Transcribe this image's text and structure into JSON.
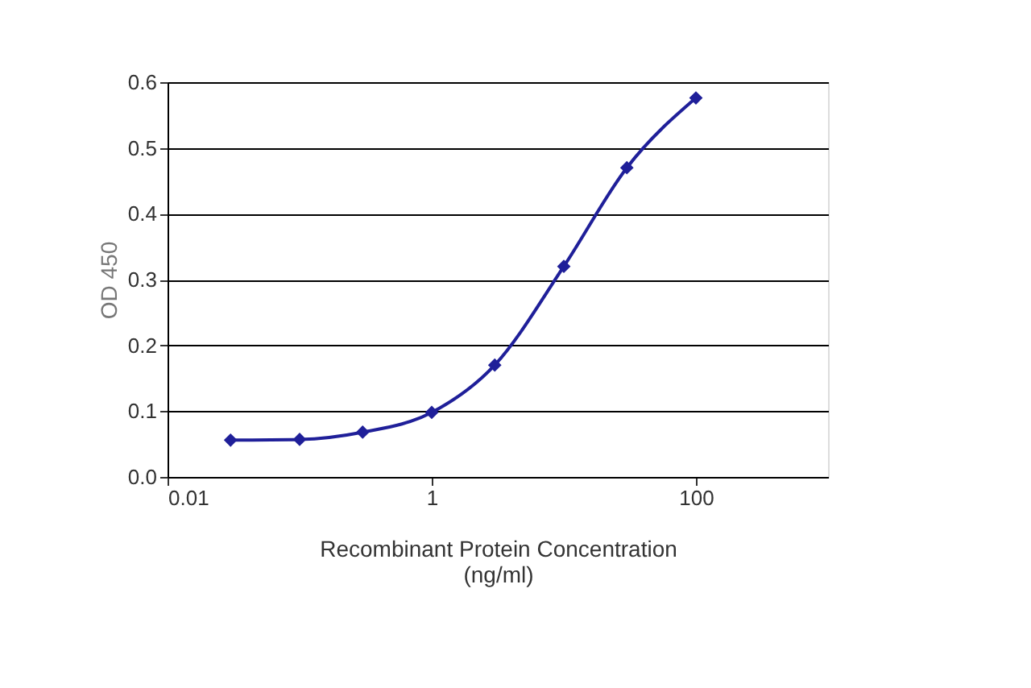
{
  "chart_data": {
    "type": "line",
    "xlabel": "Recombinant Protein Concentration\n(ng/ml)",
    "ylabel": "OD 450",
    "x": [
      0.03,
      0.1,
      0.3,
      1,
      3,
      10,
      30,
      100
    ],
    "series": [
      {
        "color": "#1f1f99",
        "values": [
          0.056,
          0.057,
          0.068,
          0.098,
          0.17,
          0.32,
          0.47,
          0.576
        ]
      }
    ],
    "log": "x",
    "xlim": [
      0.01,
      1000
    ],
    "xticks": [
      0.01,
      1,
      100
    ],
    "ylim": [
      0,
      0.6
    ],
    "yticks": [
      {
        "value": 0,
        "label": "0.0"
      },
      0.1,
      0.2,
      0.3,
      0.4,
      0.5,
      0.6
    ],
    "grid": "y",
    "marker": "diamond",
    "line_style": "solid"
  }
}
